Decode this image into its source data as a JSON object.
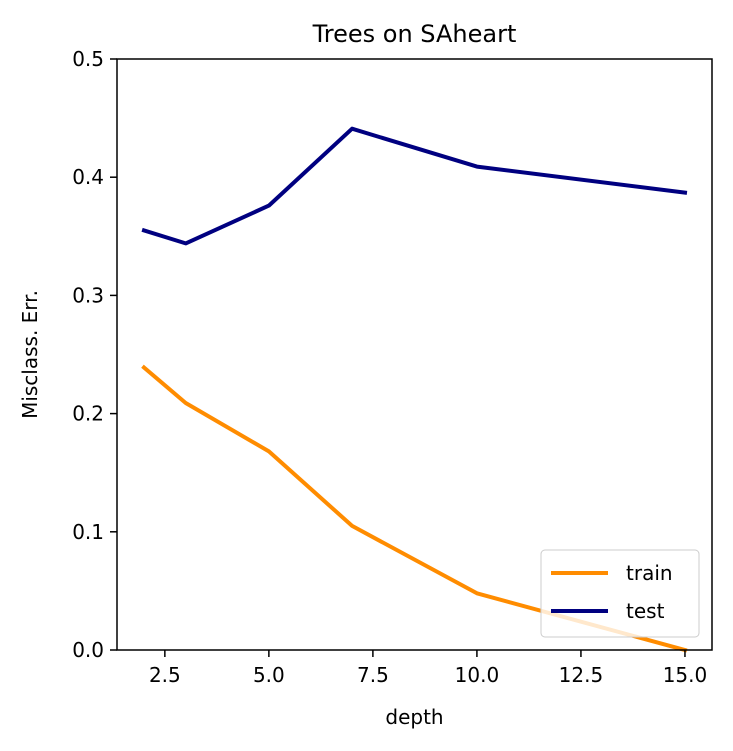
{
  "chart_data": {
    "type": "line",
    "title": "Trees on SAheart",
    "xlabel": "depth",
    "ylabel": "Misclass. Err.",
    "xlim": [
      1.35,
      15.65
    ],
    "ylim": [
      0.0,
      0.5
    ],
    "xticks": [
      2.5,
      5.0,
      7.5,
      10.0,
      12.5,
      15.0
    ],
    "xtick_labels": [
      "2.5",
      "5.0",
      "7.5",
      "10.0",
      "12.5",
      "15.0"
    ],
    "yticks": [
      0.0,
      0.1,
      0.2,
      0.3,
      0.4,
      0.5
    ],
    "ytick_labels": [
      "0.0",
      "0.1",
      "0.2",
      "0.3",
      "0.4",
      "0.5"
    ],
    "grid": false,
    "legend_position": "bottom-right",
    "x": [
      2,
      3,
      5,
      7,
      10,
      15
    ],
    "series": [
      {
        "name": "train",
        "color": "#ff8c00",
        "values": [
          0.239,
          0.209,
          0.168,
          0.105,
          0.048,
          0.0
        ]
      },
      {
        "name": "test",
        "color": "#000080",
        "values": [
          0.355,
          0.344,
          0.376,
          0.441,
          0.409,
          0.387
        ]
      }
    ]
  }
}
